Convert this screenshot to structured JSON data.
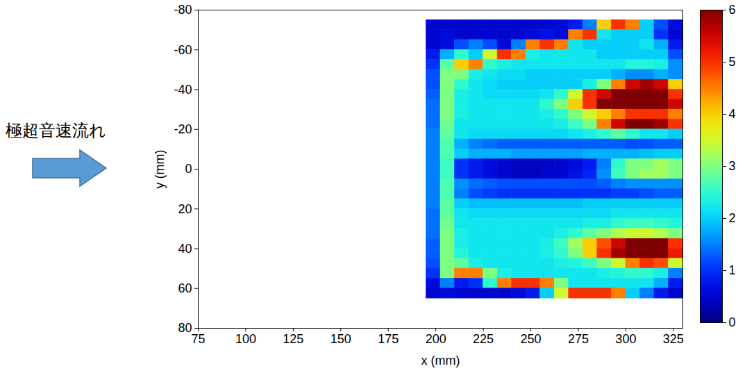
{
  "chart_data": {
    "type": "heatmap",
    "annotation": "極超音速流れ",
    "xlabel": "x (mm)",
    "ylabel": "y (mm)",
    "xlim": [
      75,
      330
    ],
    "ylim": [
      80,
      -80
    ],
    "xticks": [
      75,
      100,
      125,
      150,
      175,
      200,
      225,
      250,
      275,
      300,
      325
    ],
    "yticks": [
      -80,
      -60,
      -40,
      -20,
      0,
      20,
      40,
      60,
      80
    ],
    "x_bins": [
      195,
      202.5,
      210,
      217.5,
      225,
      232.5,
      240,
      247.5,
      255,
      262.5,
      270,
      277.5,
      285,
      292.5,
      300,
      307.5,
      315,
      322.5,
      330
    ],
    "y_bins": [
      -75,
      -70,
      -65,
      -60,
      -55,
      -50,
      -45,
      -40,
      -35,
      -30,
      -25,
      -20,
      -15,
      -10,
      -5,
      0,
      5,
      10,
      15,
      20,
      25,
      30,
      35,
      40,
      45,
      50,
      55,
      60,
      65
    ],
    "values": [
      [
        0.5,
        0.5,
        0.5,
        0.5,
        0.5,
        0.5,
        0.5,
        0.5,
        0.5,
        0.6,
        0.8,
        1.5,
        4,
        5,
        4.5,
        2,
        1.2,
        0.6
      ],
      [
        0.5,
        0.6,
        0.5,
        0.5,
        0.5,
        0.5,
        0.5,
        0.6,
        0.7,
        0.6,
        4.5,
        5,
        2.2,
        2,
        2,
        2,
        1,
        0.5
      ],
      [
        0.5,
        0.6,
        1.2,
        1.5,
        1.2,
        0.6,
        1.5,
        4.5,
        5,
        4.5,
        2.2,
        2,
        2,
        2,
        2,
        2.2,
        1.8,
        0.8
      ],
      [
        0.8,
        1.8,
        2.5,
        2,
        3.5,
        5,
        4.5,
        2.3,
        2.2,
        2.2,
        2.2,
        2.2,
        2,
        2,
        2,
        2,
        2,
        1.2
      ],
      [
        1,
        2.8,
        4,
        4.5,
        2.5,
        2.3,
        2.2,
        2.2,
        2.2,
        2.2,
        2.2,
        2.2,
        2.2,
        2.2,
        2.4,
        2.4,
        2.3,
        1.6
      ],
      [
        1.2,
        3,
        3,
        2.3,
        2.2,
        2.1,
        2.1,
        2,
        2,
        2,
        2,
        2,
        2,
        1.8,
        1.6,
        1.6,
        1.8,
        1.6
      ],
      [
        1.2,
        3,
        2.5,
        2.2,
        2.1,
        2,
        2,
        2,
        2,
        2,
        2,
        2.3,
        3,
        4.5,
        5.5,
        5.8,
        5.5,
        4
      ],
      [
        1.3,
        3,
        2.3,
        2.2,
        2.1,
        2.1,
        2.1,
        2.1,
        2.2,
        2.5,
        3.5,
        5,
        5.5,
        6,
        6,
        6,
        6,
        5
      ],
      [
        1.4,
        3,
        2.3,
        2.2,
        2.2,
        2.2,
        2.2,
        2.2,
        2.5,
        3,
        4,
        5,
        6,
        6,
        6,
        6,
        6,
        5.5
      ],
      [
        1.4,
        3,
        2.3,
        2.2,
        2.2,
        2.2,
        2.2,
        2.2,
        2.3,
        2.5,
        3,
        3.5,
        4,
        4.5,
        5,
        5,
        5,
        4.5
      ],
      [
        1.4,
        2.9,
        2.2,
        2.2,
        2.2,
        2.2,
        2.2,
        2.2,
        2.2,
        2.3,
        2.6,
        3,
        4.5,
        5.5,
        6,
        6,
        5.8,
        5
      ],
      [
        1.5,
        2.8,
        2.2,
        2.1,
        2.1,
        2.1,
        2.1,
        2.1,
        2.1,
        2.1,
        2.2,
        2.3,
        2.5,
        2.8,
        2.5,
        2.2,
        2.2,
        2
      ],
      [
        1.5,
        2.7,
        1.8,
        1.5,
        1.4,
        1.3,
        1.3,
        1.3,
        1.3,
        1.3,
        1.3,
        1.3,
        1.3,
        1.3,
        1.2,
        1.2,
        1.3,
        1.3
      ],
      [
        1.5,
        2.7,
        2,
        1.8,
        1.8,
        1.8,
        1.7,
        1.7,
        1.7,
        1.7,
        1.7,
        1.8,
        1.8,
        1.8,
        1.8,
        1.9,
        2,
        2
      ],
      [
        1.5,
        2.6,
        1,
        0.8,
        0.6,
        0.5,
        0.4,
        0.4,
        0.4,
        0.5,
        0.6,
        0.8,
        1.5,
        2.5,
        3,
        3,
        3.2,
        3
      ],
      [
        1.5,
        2.6,
        1,
        0.8,
        0.6,
        0.5,
        0.4,
        0.4,
        0.5,
        0.5,
        0.7,
        0.9,
        1.6,
        2.6,
        3,
        3.2,
        3.2,
        3
      ],
      [
        1.5,
        2.7,
        1.6,
        1.4,
        1.3,
        1.2,
        1.2,
        1.2,
        1.2,
        1.2,
        1.2,
        1.2,
        1.3,
        1.5,
        1.6,
        1.6,
        1.6,
        1.6
      ],
      [
        1.5,
        2.7,
        1.5,
        1.2,
        1.1,
        1,
        1,
        1,
        1,
        1,
        1,
        1,
        1,
        1.1,
        1.1,
        1.2,
        1.3,
        1.3
      ],
      [
        1.5,
        2.8,
        2,
        1.9,
        1.9,
        1.9,
        1.9,
        1.9,
        1.9,
        1.9,
        1.9,
        2,
        2,
        2,
        2,
        2,
        2,
        2
      ],
      [
        1.4,
        2.8,
        2.2,
        2.1,
        2.1,
        2.1,
        2.1,
        2.1,
        2.1,
        2.1,
        2.1,
        2.1,
        2.1,
        2.2,
        2.2,
        2.2,
        2.2,
        2.2
      ],
      [
        1.4,
        2.9,
        2.2,
        2.2,
        2.2,
        2.2,
        2.2,
        2.2,
        2.2,
        2.2,
        2.2,
        2.3,
        2.3,
        2.5,
        2.6,
        2.6,
        2.5,
        2.4
      ],
      [
        1.4,
        3,
        2.3,
        2.2,
        2.2,
        2.2,
        2.2,
        2.2,
        2.2,
        2.3,
        2.5,
        2.8,
        3,
        3.3,
        3.5,
        3.5,
        3.3,
        3
      ],
      [
        1.3,
        3,
        2.3,
        2.2,
        2.2,
        2.2,
        2.2,
        2.2,
        2.3,
        2.6,
        3.2,
        4,
        4.8,
        5.5,
        6,
        6,
        6,
        5
      ],
      [
        1.3,
        3,
        2.4,
        2.2,
        2.2,
        2.2,
        2.2,
        2.2,
        2.3,
        2.5,
        3,
        4,
        5,
        5.8,
        6,
        6,
        6,
        5.2
      ],
      [
        1.2,
        3,
        2.8,
        2.3,
        2.2,
        2.2,
        2.2,
        2.2,
        2.2,
        2.3,
        2.4,
        2.6,
        3,
        3.5,
        4.5,
        5,
        4.8,
        3.5
      ],
      [
        1,
        3,
        4.5,
        4.5,
        3,
        2.3,
        2.2,
        2.2,
        2.2,
        2.2,
        2.2,
        2.2,
        2.3,
        2.4,
        2.5,
        2.5,
        2.3,
        1.5
      ],
      [
        0.6,
        1.5,
        0.8,
        1,
        2.5,
        4.5,
        5,
        5,
        4.5,
        3,
        2.2,
        2.2,
        2.2,
        2.2,
        2.2,
        2.2,
        1.8,
        0.8
      ],
      [
        0.5,
        0.6,
        0.5,
        0.5,
        0.5,
        0.5,
        0.6,
        0.8,
        2,
        3.5,
        5,
        5,
        5,
        4.5,
        2,
        1.5,
        0.8,
        0.5
      ]
    ],
    "colorbar": {
      "range": [
        0,
        6
      ],
      "ticks": [
        0,
        1,
        2,
        3,
        4,
        5,
        6
      ]
    }
  }
}
